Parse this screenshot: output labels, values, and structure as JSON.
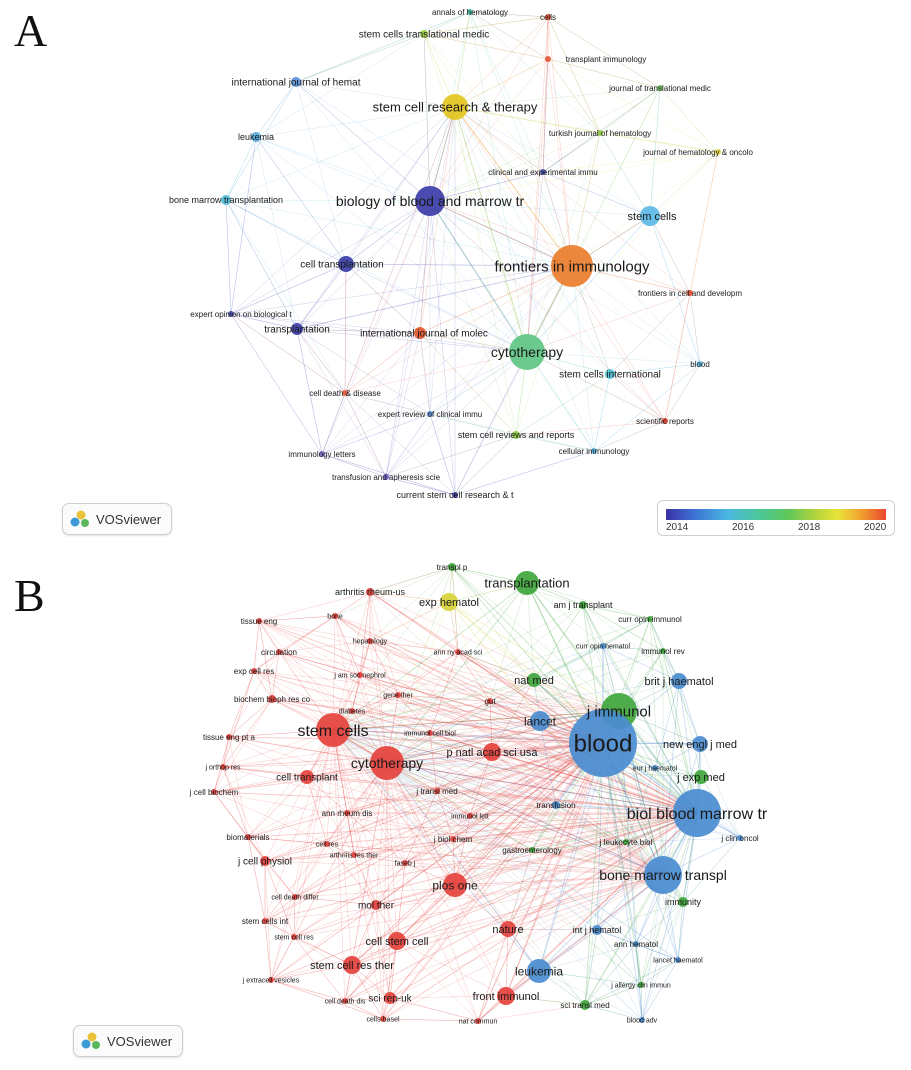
{
  "panels": {
    "a": {
      "letter": "A"
    },
    "b": {
      "letter": "B"
    }
  },
  "legend": {
    "ticks": [
      "2014",
      "2016",
      "2018",
      "2020"
    ],
    "colors": [
      "#3b2fa4",
      "#3c6fd4",
      "#4ab7e0",
      "#4dc79c",
      "#5dc75b",
      "#b2d33b",
      "#e9e43a",
      "#f2a62f",
      "#e8472d"
    ]
  },
  "badges": {
    "vosviewer": "VOSviewer"
  },
  "network_a": {
    "nodes": [
      {
        "label": "annals of hematology",
        "color": "#48c1a6"
      },
      {
        "label": "cells",
        "color": "#e64b2e"
      },
      {
        "label": "stem cells translational medic",
        "color": "#9ccf3c"
      },
      {
        "label": "transplant immunology",
        "color": "#e5583a"
      },
      {
        "label": "international journal of hemat",
        "color": "#5a8fd8"
      },
      {
        "label": "journal of translational medic",
        "color": "#72c35a"
      },
      {
        "label": "stem cell research & therapy",
        "color": "#e3c51f"
      },
      {
        "label": "leukemia",
        "color": "#56a9dc"
      },
      {
        "label": "turkish journal of hematology",
        "color": "#94cb46"
      },
      {
        "label": "journal of hematology & oncolo",
        "color": "#e4d83c"
      },
      {
        "label": "clinical and experimental immu",
        "color": "#4a4eb8"
      },
      {
        "label": "bone marrow transplantation",
        "color": "#50bcd6"
      },
      {
        "label": "biology of blood and marrow tr",
        "color": "#3b3da8"
      },
      {
        "label": "stem cells",
        "color": "#5cb8e6"
      },
      {
        "label": "cell transplantation",
        "color": "#3a3ea6"
      },
      {
        "label": "frontiers in immunology",
        "color": "#ea7d2e"
      },
      {
        "label": "frontiers in cell and developm",
        "color": "#e64b2e"
      },
      {
        "label": "expert opinion on biological t",
        "color": "#4a4ab6"
      },
      {
        "label": "transplantation",
        "color": "#3a3da6"
      },
      {
        "label": "international journal of molec",
        "color": "#e4572e"
      },
      {
        "label": "cytotherapy",
        "color": "#5fc684"
      },
      {
        "label": "blood",
        "color": "#59b7e2"
      },
      {
        "label": "stem cells international",
        "color": "#4bbfd0"
      },
      {
        "label": "cell death & disease",
        "color": "#e45b3c"
      },
      {
        "label": "expert review of clinical immu",
        "color": "#5a8bd8"
      },
      {
        "label": "scientific reports",
        "color": "#e5402d"
      },
      {
        "label": "stem cell reviews and reports",
        "color": "#8fcb45"
      },
      {
        "label": "cellular immunology",
        "color": "#58b6e0"
      },
      {
        "label": "immunology letters",
        "color": "#7e6acb"
      },
      {
        "label": "transfusion and apheresis scie",
        "color": "#6a5ac0"
      },
      {
        "label": "current stem cell research & t",
        "color": "#3e3aa6"
      }
    ]
  },
  "network_b": {
    "nodes": [
      {
        "label": "transpl p",
        "color": "#3fa63c"
      },
      {
        "label": "transplantation",
        "color": "#3fa63c"
      },
      {
        "label": "arthritis rheum-us",
        "color": "#e5423d"
      },
      {
        "label": "exp hematol",
        "color": "#d7d23a"
      },
      {
        "label": "am j transplant",
        "color": "#3fa63c"
      },
      {
        "label": "bone",
        "color": "#e5423d"
      },
      {
        "label": "tissue eng",
        "color": "#e5423d"
      },
      {
        "label": "curr opin immunol",
        "color": "#3fa63c"
      },
      {
        "label": "hepatology",
        "color": "#e5423d"
      },
      {
        "label": "circulation",
        "color": "#e5423d"
      },
      {
        "label": "ann ny acad sci",
        "color": "#e5423d"
      },
      {
        "label": "curr opin hematol",
        "color": "#4a8cd0"
      },
      {
        "label": "immunol rev",
        "color": "#3fa63c"
      },
      {
        "label": "exp cell res",
        "color": "#e5423d"
      },
      {
        "label": "j am soc nephrol",
        "color": "#e5423d"
      },
      {
        "label": "nat med",
        "color": "#3fa63c"
      },
      {
        "label": "brit j haematol",
        "color": "#4a8cd0"
      },
      {
        "label": "gene ther",
        "color": "#e5423d"
      },
      {
        "label": "biochem bioph res co",
        "color": "#e5423d"
      },
      {
        "label": "diabetes",
        "color": "#e5423d"
      },
      {
        "label": "gut",
        "color": "#e5423d"
      },
      {
        "label": "j immunol",
        "color": "#3fa63c"
      },
      {
        "label": "lancet",
        "color": "#4a8cd0"
      },
      {
        "label": "stem cells",
        "color": "#e5423d"
      },
      {
        "label": "immunol cell biol",
        "color": "#e5423d"
      },
      {
        "label": "blood",
        "color": "#4a8cd0"
      },
      {
        "label": "tissue eng pt a",
        "color": "#e5423d"
      },
      {
        "label": "p natl acad sci usa",
        "color": "#e5423d"
      },
      {
        "label": "new engl j med",
        "color": "#4a8cd0"
      },
      {
        "label": "cytotherapy",
        "color": "#e5423d"
      },
      {
        "label": "j orthop res",
        "color": "#e5423d"
      },
      {
        "label": "eur j haematol",
        "color": "#4a8cd0"
      },
      {
        "label": "cell transplant",
        "color": "#e5423d"
      },
      {
        "label": "j exp med",
        "color": "#3fa63c"
      },
      {
        "label": "j transl med",
        "color": "#e5423d"
      },
      {
        "label": "j cell biochem",
        "color": "#e5423d"
      },
      {
        "label": "transfusion",
        "color": "#4a8cd0"
      },
      {
        "label": "biol blood marrow tr",
        "color": "#4a8cd0"
      },
      {
        "label": "ann rheum dis",
        "color": "#e5423d"
      },
      {
        "label": "immunol lett",
        "color": "#e5423d"
      },
      {
        "label": "j leukocyte biol",
        "color": "#3fa63c"
      },
      {
        "label": "j clin oncol",
        "color": "#4a8cd0"
      },
      {
        "label": "biomaterials",
        "color": "#e5423d"
      },
      {
        "label": "j biol chem",
        "color": "#e5423d"
      },
      {
        "label": "cell res",
        "color": "#e5423d"
      },
      {
        "label": "arthritis res ther",
        "color": "#e5423d"
      },
      {
        "label": "gastroenterology",
        "color": "#3fa63c"
      },
      {
        "label": "j cell physiol",
        "color": "#e5423d"
      },
      {
        "label": "faseb j",
        "color": "#e5423d"
      },
      {
        "label": "bone marrow transpl",
        "color": "#4a8cd0"
      },
      {
        "label": "plos one",
        "color": "#e5423d"
      },
      {
        "label": "cell death differ",
        "color": "#e5423d"
      },
      {
        "label": "immunity",
        "color": "#3fa63c"
      },
      {
        "label": "mol ther",
        "color": "#e5423d"
      },
      {
        "label": "stem cells int",
        "color": "#e5423d"
      },
      {
        "label": "nature",
        "color": "#e5423d"
      },
      {
        "label": "int j hematol",
        "color": "#4a8cd0"
      },
      {
        "label": "stem cell res",
        "color": "#e5423d"
      },
      {
        "label": "cell stem cell",
        "color": "#e5423d"
      },
      {
        "label": "ann hematol",
        "color": "#4a8cd0"
      },
      {
        "label": "lancet haematol",
        "color": "#4a8cd0"
      },
      {
        "label": "stem cell res ther",
        "color": "#e5423d"
      },
      {
        "label": "leukemia",
        "color": "#4a8cd0"
      },
      {
        "label": "j allergy clin immun",
        "color": "#3fa63c"
      },
      {
        "label": "j extracell vesicles",
        "color": "#e5423d"
      },
      {
        "label": "cell death dis",
        "color": "#e5423d"
      },
      {
        "label": "sci rep-uk",
        "color": "#e5423d"
      },
      {
        "label": "front immunol",
        "color": "#e5423d"
      },
      {
        "label": "sci transl med",
        "color": "#3fa63c"
      },
      {
        "label": "cells-basel",
        "color": "#e5423d"
      },
      {
        "label": "nat commun",
        "color": "#e5423d"
      },
      {
        "label": "blood adv",
        "color": "#4a8cd0"
      }
    ]
  }
}
